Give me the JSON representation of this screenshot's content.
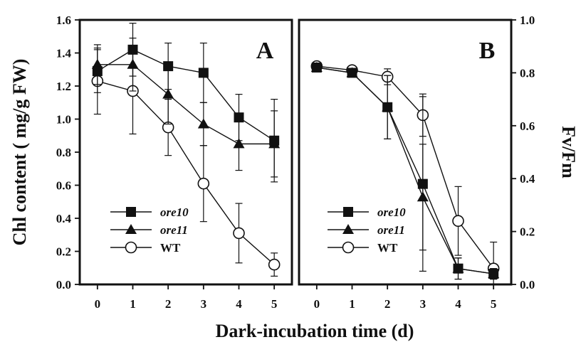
{
  "chart_data": [
    {
      "type": "line",
      "panel_label": "A",
      "x": [
        0,
        1,
        2,
        3,
        4,
        5
      ],
      "xlim": [
        -0.5,
        5.5
      ],
      "ylim": [
        0,
        1.6
      ],
      "yticks": [
        "0.0",
        "0.2",
        "0.4",
        "0.6",
        "0.8",
        "1.0",
        "1.2",
        "1.4",
        "1.6"
      ],
      "xticks": [
        "0",
        "1",
        "2",
        "3",
        "4",
        "5"
      ],
      "ylabel": "Chl content ( mg/g FW)",
      "y_axis_side": "left",
      "legend_position": "lower-left",
      "series": [
        {
          "name": "ore10",
          "marker": "filled-square",
          "values": [
            1.29,
            1.42,
            1.32,
            1.28,
            1.01,
            0.87
          ],
          "errors": [
            0.13,
            0.16,
            0.14,
            0.18,
            0.14,
            0.25
          ]
        },
        {
          "name": "ore11",
          "marker": "filled-triangle",
          "values": [
            1.33,
            1.33,
            1.15,
            0.97,
            0.85,
            0.85
          ],
          "errors": [
            0.12,
            0.16,
            0.18,
            0.13,
            0.16,
            0.2
          ]
        },
        {
          "name": "WT",
          "marker": "open-circle",
          "values": [
            1.23,
            1.17,
            0.95,
            0.61,
            0.31,
            0.12
          ],
          "errors": [
            0.2,
            0.26,
            0.17,
            0.23,
            0.18,
            0.07
          ]
        }
      ]
    },
    {
      "type": "line",
      "panel_label": "B",
      "x": [
        0,
        1,
        2,
        3,
        4,
        5
      ],
      "xlim": [
        -0.5,
        5.5
      ],
      "ylim": [
        0,
        1.0
      ],
      "yticks": [
        "0.0",
        "0.2",
        "0.4",
        "0.6",
        "0.8",
        "1.0"
      ],
      "xticks": [
        "0",
        "1",
        "2",
        "3",
        "4",
        "5"
      ],
      "ylabel": "Fv/Fm",
      "y_axis_side": "right",
      "legend_position": "lower-left",
      "series": [
        {
          "name": "ore10",
          "marker": "filled-square",
          "values": [
            0.82,
            0.8,
            0.67,
            0.38,
            0.06,
            0.04
          ],
          "errors": [
            0.01,
            0.01,
            0.12,
            0.33,
            0.04,
            0.02
          ]
        },
        {
          "name": "ore11",
          "marker": "filled-triangle",
          "values": [
            0.82,
            0.8,
            0.67,
            0.33,
            0.06,
            0.04
          ],
          "errors": [
            0.01,
            0.01,
            0.12,
            0.2,
            0.04,
            0.02
          ]
        },
        {
          "name": "WT",
          "marker": "open-circle",
          "values": [
            0.825,
            0.81,
            0.785,
            0.64,
            0.24,
            0.06
          ],
          "errors": [
            0.01,
            0.01,
            0.03,
            0.08,
            0.13,
            0.1
          ]
        }
      ]
    }
  ],
  "xlabel": "Dark-incubation time (d)",
  "colors": {
    "ink": "#111111",
    "background": "#ffffff"
  }
}
